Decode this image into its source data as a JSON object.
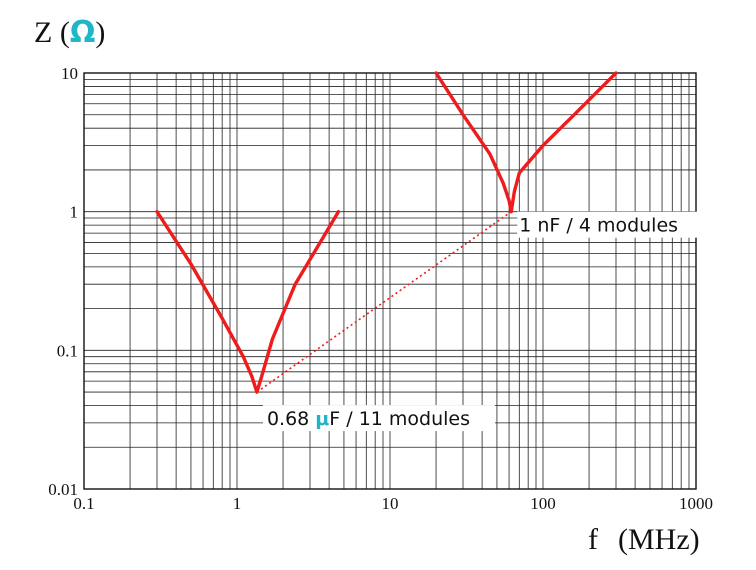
{
  "chart_data": {
    "type": "line",
    "title": "",
    "xlabel": "f",
    "xunit": "(MHz)",
    "ylabel": "Z",
    "yunit": "Ω",
    "x_scale": "log",
    "y_scale": "log",
    "xlim": [
      0.1,
      1000
    ],
    "ylim": [
      0.01,
      10
    ],
    "grid": true,
    "x_ticks": [
      "0.1",
      "1",
      "10",
      "100",
      "1000"
    ],
    "y_ticks": [
      "10",
      "1",
      "0.1",
      "0.01"
    ],
    "series": [
      {
        "color": "#ee1c1c",
        "points": [
          [
            0.3,
            1.0
          ],
          [
            0.5,
            0.42
          ],
          [
            0.8,
            0.17
          ],
          [
            1.1,
            0.09
          ],
          [
            1.25,
            0.065
          ],
          [
            1.35,
            0.05
          ],
          [
            1.45,
            0.065
          ],
          [
            1.7,
            0.12
          ],
          [
            2.4,
            0.3
          ],
          [
            3.5,
            0.6
          ],
          [
            4.6,
            1.0
          ]
        ]
      },
      {
        "color": "#ee1c1c",
        "points": [
          [
            20,
            10
          ],
          [
            30,
            5
          ],
          [
            45,
            2.6
          ],
          [
            55,
            1.6
          ],
          [
            60,
            1.2
          ],
          [
            62,
            1.0
          ],
          [
            65,
            1.4
          ],
          [
            70,
            1.9
          ],
          [
            100,
            3.0
          ],
          [
            160,
            5.0
          ],
          [
            300,
            10
          ]
        ]
      }
    ],
    "connector": {
      "from": [
        1.35,
        0.05
      ],
      "to": [
        62,
        1.0
      ],
      "style": "dotted",
      "color": "#ee1c1c"
    },
    "annotations": [
      {
        "pre": "0.68 ",
        "mu": "μ",
        "post": "F / 11 modules",
        "x": 1.35,
        "y": 0.05
      },
      {
        "text": "1 nF / 4 modules",
        "x": 62,
        "y": 1.0
      }
    ]
  }
}
